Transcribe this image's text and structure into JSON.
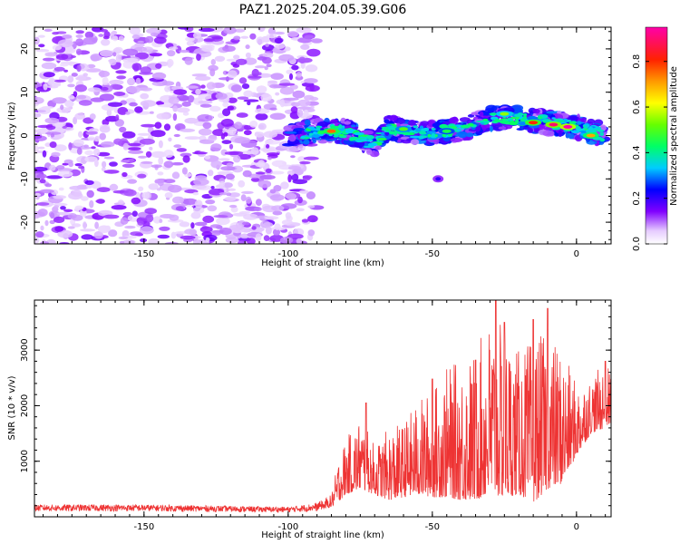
{
  "figure": {
    "title": "PAZ1.2025.204.05.39.G06"
  },
  "chart_data": [
    {
      "type": "heatmap",
      "xlabel": "Height of straight line (km)",
      "ylabel": "Frequency (Hz)",
      "xlim": [
        -188,
        12
      ],
      "ylim": [
        -25,
        25
      ],
      "xticks": [
        -150,
        -100,
        -50,
        0
      ],
      "yticks": [
        -20,
        -10,
        0,
        10,
        20
      ],
      "xtick_labels": [
        "-150",
        "-100",
        "-50",
        "0"
      ],
      "ytick_labels": [
        "-20",
        "-10",
        "0",
        "10",
        "20"
      ],
      "colorbar": {
        "label": "Normalized spectral amplitude",
        "range": [
          0.0,
          0.95
        ],
        "ticks": [
          0.0,
          0.2,
          0.4,
          0.6,
          0.8
        ],
        "tick_labels": [
          "0.0",
          "0.2",
          "0.4",
          "0.6",
          "0.8"
        ]
      },
      "noise_region_x": [
        -188,
        -90
      ],
      "signal_ridge": {
        "x": [
          -100,
          -90,
          -80,
          -70,
          -65,
          -60,
          -50,
          -40,
          -30,
          -20,
          -10,
          0,
          10
        ],
        "freq": [
          0,
          1,
          1,
          -2,
          2,
          1,
          0.5,
          1.5,
          4,
          4,
          3,
          2,
          0
        ]
      },
      "hotspots": [
        {
          "x": -85,
          "freq": 1,
          "level": 0.75
        },
        {
          "x": -60,
          "freq": 1.5,
          "level": 0.5
        },
        {
          "x": -45,
          "freq": 1,
          "level": 0.45
        },
        {
          "x": -25,
          "freq": 5,
          "level": 0.55
        },
        {
          "x": -15,
          "freq": 3,
          "level": 0.8
        },
        {
          "x": -8,
          "freq": 2.5,
          "level": 0.9
        },
        {
          "x": -3,
          "freq": 2,
          "level": 0.95
        },
        {
          "x": 5,
          "freq": 0,
          "level": 0.7
        }
      ]
    },
    {
      "type": "line",
      "xlabel": "Height of straight line (km)",
      "ylabel": "SNR (10 * v/v)",
      "xlim": [
        -188,
        12
      ],
      "ylim": [
        0,
        3900
      ],
      "xticks": [
        -150,
        -100,
        -50,
        0
      ],
      "yticks": [
        1000,
        2000,
        3000
      ],
      "xtick_labels": [
        "-150",
        "-100",
        "-50",
        "0"
      ],
      "ytick_labels": [
        "1000",
        "2000",
        "3000"
      ],
      "color": "#ee3333",
      "envelope": {
        "x": [
          -188,
          -150,
          -100,
          -90,
          -85,
          -82,
          -80,
          -75,
          -70,
          -65,
          -60,
          -55,
          -50,
          -45,
          -40,
          -35,
          -30,
          -25,
          -20,
          -15,
          -10,
          -5,
          0,
          5,
          10,
          12
        ],
        "low": [
          100,
          100,
          80,
          100,
          180,
          300,
          400,
          500,
          400,
          300,
          350,
          400,
          350,
          350,
          300,
          300,
          400,
          350,
          400,
          250,
          500,
          600,
          1100,
          1500,
          1600,
          1700
        ],
        "high": [
          220,
          220,
          180,
          250,
          400,
          1200,
          1400,
          1800,
          1300,
          1600,
          1700,
          2100,
          2300,
          2700,
          2800,
          3000,
          3600,
          3400,
          3000,
          3200,
          3300,
          3000,
          2400,
          2500,
          2800,
          2600
        ]
      },
      "peaks": [
        {
          "x": -73,
          "y": 2050
        },
        {
          "x": -50,
          "y": 2480
        },
        {
          "x": -35,
          "y": 2820
        },
        {
          "x": -28,
          "y": 3900
        },
        {
          "x": -25,
          "y": 3500
        },
        {
          "x": -15,
          "y": 3550
        },
        {
          "x": -10,
          "y": 3750
        },
        {
          "x": 10,
          "y": 2800
        }
      ]
    }
  ]
}
